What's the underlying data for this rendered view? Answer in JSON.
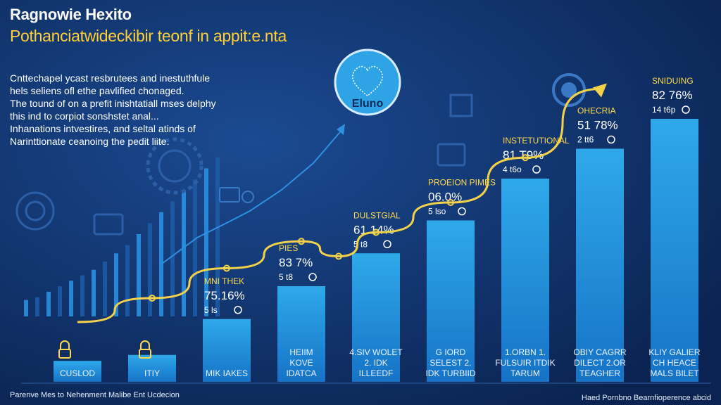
{
  "header": {
    "title": "Ragnowie Hexito",
    "subtitle": "Pothanciatwideckibir teonf in appit:e.nta"
  },
  "description": [
    "Cnttechapel ycast resbrutees and inestuthfule",
    "hels seliens ofl ethe pavlified chonaged.",
    "The tound of on a prefit inishtatiall mses delphy",
    "this ind to corpiot sonshstet anal...",
    "Inhanations intvestires, and seltal atinds of",
    "Narinttionate ceanoing the pedit liite."
  ],
  "badge": {
    "label": "Eluno"
  },
  "footer": {
    "left": "Parenve Mes to Nehenment Malibe Ent Ucdecion",
    "right": "Haed Pornbno Bearnfioperence abcid"
  },
  "colors": {
    "background": "#0c2a5c",
    "bar_light": "#2aa4e6",
    "bar_dark": "#1466b8",
    "trend_line": "#f3d24a",
    "label_yellow": "#ffd84a",
    "text_white": "#ffffff"
  },
  "chart_data": {
    "type": "bar",
    "title": "Ragnowie Hexito",
    "xlabel": "",
    "ylabel": "",
    "ylim": [
      0,
      100
    ],
    "grid": false,
    "series": [
      {
        "name": "main",
        "values": [
          7,
          9,
          21,
          32,
          43,
          54,
          68,
          78,
          88
        ]
      }
    ],
    "categories": [
      "CUSLOD",
      "ITIY",
      "MIK IAKES",
      "HEIIM KOVE IDATCA",
      "4.SIV WOLET 2. IDK ILLEEDF",
      "G IORD SELEST 2. IDK TURBIID",
      "1.ORBN 1. FULSUIR ITDIK TARUM",
      "OBIY CAGRR DILECT 2.OR TEAGHER",
      "KLIY GALIER CH HEACE MALS BILET"
    ],
    "headings": [
      "",
      "",
      "MNI THEK",
      "PIES",
      "DULSTGIAL",
      "PROEION PIMES",
      "INSTETUTIONAL",
      "OHECRIA",
      "SNIDUING"
    ],
    "percent_labels": [
      "",
      "",
      "75.16%",
      "83 7%",
      "61 14%",
      "06.0%",
      "81 T9%",
      "51 78%",
      "82 76%"
    ],
    "sub_labels": [
      "",
      "",
      "5 ls",
      "5 t8",
      "5 t8",
      "5 lso",
      "4 t6o",
      "2 tt6",
      "14 t6p"
    ],
    "trend_line": [
      {
        "x": 1,
        "y": 20
      },
      {
        "x": 2,
        "y": 28
      },
      {
        "x": 3,
        "y": 38
      },
      {
        "x": 4,
        "y": 47
      },
      {
        "x": 4.5,
        "y": 42
      },
      {
        "x": 5,
        "y": 50
      },
      {
        "x": 6,
        "y": 60
      },
      {
        "x": 7,
        "y": 75
      },
      {
        "x": 8,
        "y": 98
      }
    ],
    "background_series": [
      6,
      7,
      9,
      11,
      13,
      15,
      17,
      20,
      23,
      26,
      30,
      34,
      38,
      42,
      46,
      50,
      54,
      58
    ]
  }
}
